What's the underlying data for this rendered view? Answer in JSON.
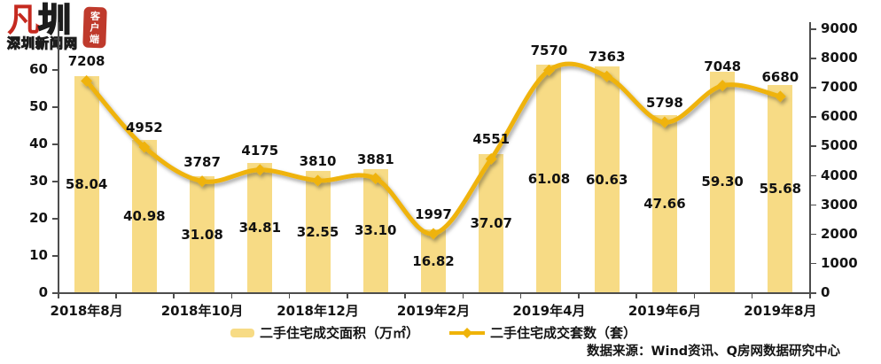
{
  "logo": {
    "mark_red": "凡",
    "mark_dark": "圳",
    "name": "深圳新闻网",
    "seal": [
      "客",
      "户",
      "端"
    ]
  },
  "chart_data": {
    "type": "combo-bar-line",
    "n_points": 13,
    "x_tick_labels": [
      "2018年8月",
      "2018年10月",
      "2018年12月",
      "2019年2月",
      "2019年4月",
      "2019年6月",
      "2019年8月"
    ],
    "x_label_every": 2,
    "series": [
      {
        "name": "二手住宅成交面积（万㎡）",
        "type": "bar",
        "axis": "left",
        "color": "#F7DB85",
        "values_display": [
          "58.04",
          "40.98",
          "31.08",
          "34.81",
          "32.55",
          "33.10",
          "16.82",
          "37.07",
          "61.08",
          "60.63",
          "47.66",
          "59.30",
          "55.68"
        ]
      },
      {
        "name": "二手住宅成交套数（套）",
        "type": "line",
        "axis": "right",
        "color": "#EFB308",
        "values": [
          7208,
          4952,
          3787,
          4175,
          3810,
          3881,
          1997,
          4551,
          7570,
          7363,
          5798,
          7048,
          6680
        ]
      }
    ],
    "left_axis": {
      "min": 0,
      "max": 60,
      "step": 10,
      "ticks": [
        "0",
        "10",
        "20",
        "30",
        "40",
        "50",
        "60"
      ]
    },
    "right_axis": {
      "min": 0,
      "max": 9000,
      "step": 1000,
      "ticks": [
        "0",
        "1000",
        "2000",
        "3000",
        "4000",
        "5000",
        "6000",
        "7000",
        "8000",
        "9000"
      ]
    },
    "grid": false,
    "legend_position": "bottom"
  },
  "source": "数据来源：Wind资讯、Q房网数据研究中心"
}
